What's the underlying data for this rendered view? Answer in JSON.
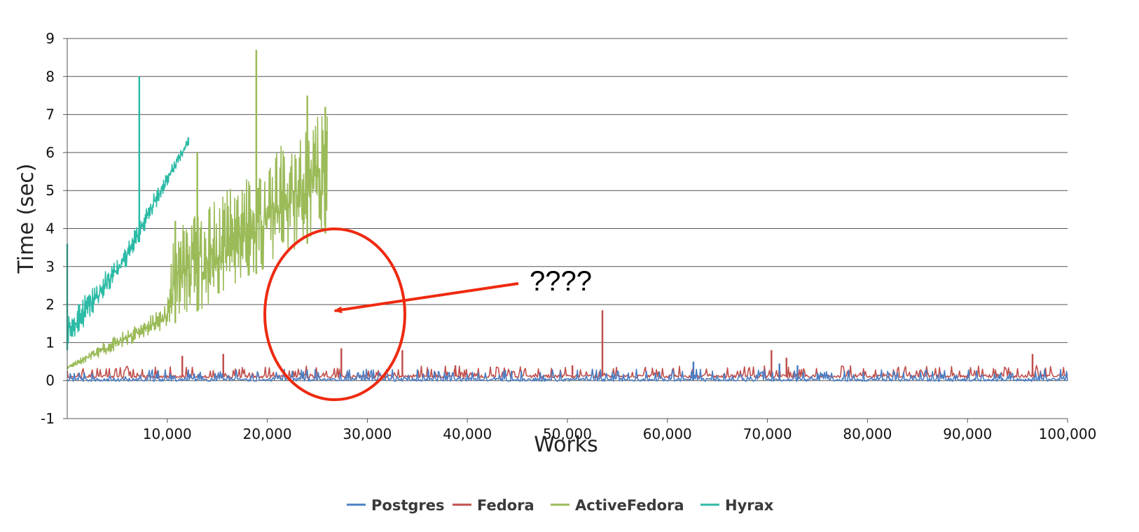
{
  "chart_data": {
    "type": "line",
    "title": "",
    "xlabel": "Works",
    "ylabel": "Time (sec)",
    "xlim": [
      0,
      100000
    ],
    "ylim": [
      -1,
      9
    ],
    "x_ticks": [
      10000,
      20000,
      30000,
      40000,
      50000,
      60000,
      70000,
      80000,
      90000,
      100000
    ],
    "x_tick_labels": [
      "10,000",
      "20,000",
      "30,000",
      "40,000",
      "50,000",
      "60,000",
      "70,000",
      "80,000",
      "90,000",
      "100,000"
    ],
    "y_ticks": [
      -1,
      0,
      1,
      2,
      3,
      4,
      5,
      6,
      7,
      8,
      9
    ],
    "y_tick_labels": [
      "-1",
      "0",
      "1",
      "2",
      "3",
      "4",
      "5",
      "6",
      "7",
      "8",
      "9"
    ],
    "grid": true,
    "legend_position": "bottom",
    "series": [
      {
        "name": "Postgres",
        "color": "#4a7ec4",
        "x_range": [
          0,
          100000
        ],
        "baseline": [
          [
            0,
            0.02
          ],
          [
            100000,
            0.02
          ]
        ],
        "spikes": [
          [
            62600,
            0.5
          ],
          [
            71200,
            0.45
          ],
          [
            73000,
            0.4
          ],
          [
            75000,
            0.2
          ]
        ]
      },
      {
        "name": "Fedora",
        "color": "#c0504d",
        "x_range": [
          0,
          100000
        ],
        "baseline": [
          [
            0,
            0.1
          ],
          [
            100000,
            0.12
          ]
        ],
        "spikes": [
          [
            11500,
            0.65
          ],
          [
            15600,
            0.7
          ],
          [
            27400,
            0.85
          ],
          [
            33500,
            0.8
          ],
          [
            38800,
            0.4
          ],
          [
            50500,
            0.4
          ],
          [
            53500,
            1.85
          ],
          [
            70400,
            0.8
          ],
          [
            71900,
            0.6
          ],
          [
            96500,
            0.7
          ]
        ]
      },
      {
        "name": "ActiveFedora",
        "color": "#9bbb59",
        "x_range": [
          0,
          26000
        ],
        "baseline": [
          [
            0,
            0.3
          ],
          [
            5000,
            0.8
          ],
          [
            10000,
            1.4
          ],
          [
            15000,
            2.1
          ],
          [
            20000,
            3.0
          ],
          [
            26000,
            3.9
          ]
        ],
        "envelope_top": [
          [
            0,
            0.4
          ],
          [
            5000,
            1.2
          ],
          [
            10000,
            2.0
          ],
          [
            10800,
            4.2
          ],
          [
            15000,
            4.8
          ],
          [
            20000,
            5.9
          ],
          [
            26000,
            7.2
          ]
        ],
        "spikes": [
          [
            10800,
            4.2
          ],
          [
            13000,
            6.0
          ],
          [
            18900,
            8.7
          ],
          [
            24000,
            7.5
          ],
          [
            25800,
            7.2
          ]
        ]
      },
      {
        "name": "Hyrax",
        "color": "#2cbba6",
        "x_range": [
          0,
          12100
        ],
        "baseline": [
          [
            0,
            0.8
          ],
          [
            3000,
            1.9
          ],
          [
            6000,
            3.0
          ],
          [
            9000,
            4.6
          ],
          [
            12100,
            6.2
          ]
        ],
        "envelope_top": [
          [
            0,
            1.8
          ],
          [
            3000,
            2.6
          ],
          [
            6000,
            3.6
          ],
          [
            9000,
            5.1
          ],
          [
            12100,
            6.4
          ]
        ],
        "spikes": [
          [
            0,
            3.6
          ],
          [
            7200,
            8.0
          ],
          [
            12100,
            6.4
          ]
        ]
      }
    ],
    "annotation": {
      "text": "????",
      "color": "#ee2a10"
    }
  }
}
